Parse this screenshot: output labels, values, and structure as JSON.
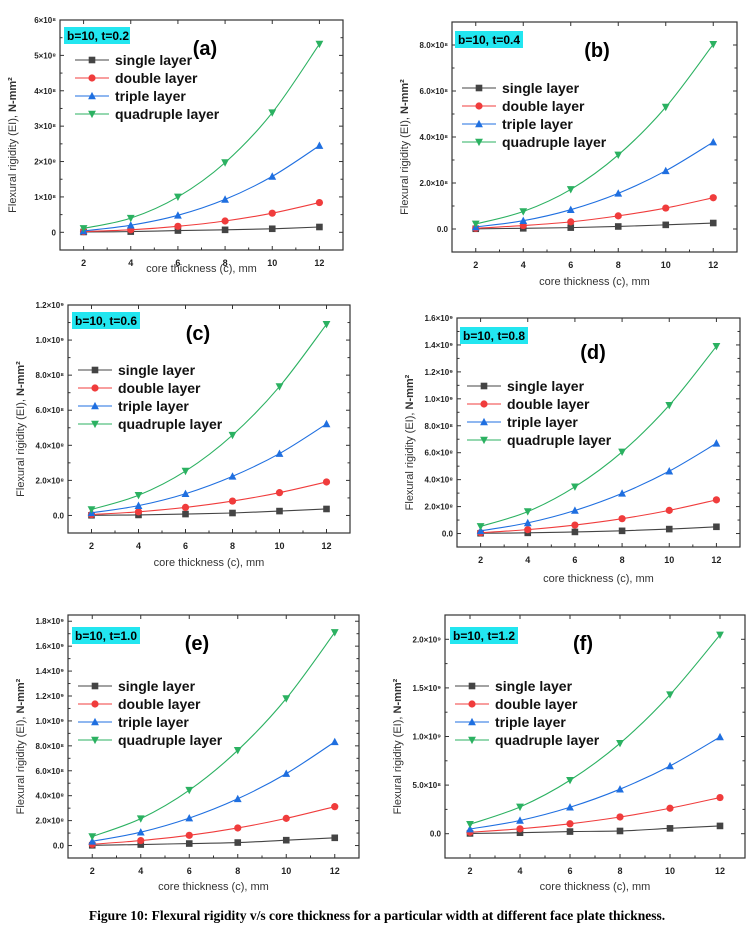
{
  "caption": "Figure 10: Flexural rigidity v/s core thickness for a particular width at different face plate thickness.",
  "series_styles": [
    {
      "name": "single layer",
      "color": "#444444",
      "marker": "square"
    },
    {
      "name": "double layer",
      "color": "#f03c3c",
      "marker": "circle"
    },
    {
      "name": "triple layer",
      "color": "#1f6fe0",
      "marker": "triangle-up"
    },
    {
      "name": "quadruple layer",
      "color": "#2bb161",
      "marker": "triangle-down"
    }
  ],
  "param_box_color": "#22e6f0",
  "chart_data": [
    {
      "type": "line",
      "panel": "(a)",
      "param_label": "b=10, t=0.2",
      "xlabel": "core thickness (c), mm",
      "ylabel": "Flexural rigidity (EI),",
      "ylabel_unit": "N-mm²",
      "x": [
        2,
        4,
        6,
        8,
        10,
        12
      ],
      "xlim": [
        1,
        13
      ],
      "xticks": [
        2,
        4,
        6,
        8,
        10,
        12
      ],
      "ylim": [
        -50000000,
        600000000
      ],
      "yticks": [
        0,
        100000000,
        200000000,
        300000000,
        400000000,
        500000000,
        600000000
      ],
      "ytick_labels": [
        "0",
        "1×10⁸",
        "2×10⁸",
        "3×10⁸",
        "4×10⁸",
        "5×10⁸",
        "6×10⁸"
      ],
      "legend_position": "upper-left",
      "series": [
        {
          "name": "single layer",
          "values": [
            1000000,
            2000000,
            5000000,
            7000000,
            10000000,
            15000000
          ]
        },
        {
          "name": "double layer",
          "values": [
            2000000,
            7000000,
            17000000,
            32000000,
            54000000,
            84000000
          ]
        },
        {
          "name": "triple layer",
          "values": [
            4000000,
            20000000,
            48000000,
            93000000,
            158000000,
            245000000
          ]
        },
        {
          "name": "quadruple layer",
          "values": [
            11000000,
            40000000,
            100000000,
            197000000,
            338000000,
            532000000
          ]
        }
      ]
    },
    {
      "type": "line",
      "panel": "(b)",
      "param_label": "b=10, t=0.4",
      "xlabel": "core thickness (c), mm",
      "ylabel": "Flexural rigidity (EI),",
      "ylabel_unit": "N-mm²",
      "x": [
        2,
        4,
        6,
        8,
        10,
        12
      ],
      "xlim": [
        1,
        13
      ],
      "xticks": [
        2,
        4,
        6,
        8,
        10,
        12
      ],
      "ylim": [
        -100000000,
        900000000
      ],
      "yticks": [
        0,
        200000000,
        400000000,
        600000000,
        800000000
      ],
      "ytick_labels": [
        "0.0",
        "2.0×10⁸",
        "4.0×10⁸",
        "6.0×10⁸",
        "8.0×10⁸"
      ],
      "legend_position": "upper-left",
      "series": [
        {
          "name": "single layer",
          "values": [
            1000000,
            3000000,
            6000000,
            11000000,
            18000000,
            26000000
          ]
        },
        {
          "name": "double layer",
          "values": [
            3000000,
            15000000,
            31000000,
            57000000,
            91000000,
            136000000
          ]
        },
        {
          "name": "triple layer",
          "values": [
            9000000,
            36000000,
            84000000,
            155000000,
            253000000,
            378000000
          ]
        },
        {
          "name": "quadruple layer",
          "values": [
            22000000,
            76000000,
            172000000,
            322000000,
            530000000,
            803000000
          ]
        }
      ]
    },
    {
      "type": "line",
      "panel": "(c)",
      "param_label": "b=10, t=0.6",
      "xlabel": "core thickness (c), mm",
      "ylabel": "Flexural rigidity (EI),",
      "ylabel_unit": "N-mm²",
      "x": [
        2,
        4,
        6,
        8,
        10,
        12
      ],
      "xlim": [
        1,
        13
      ],
      "xticks": [
        2,
        4,
        6,
        8,
        10,
        12
      ],
      "ylim": [
        -100000000,
        1200000000
      ],
      "yticks": [
        0,
        200000000,
        400000000,
        600000000,
        800000000,
        1000000000,
        1200000000
      ],
      "ytick_labels": [
        "0.0",
        "2.0×10⁸",
        "4.0×10⁸",
        "6.0×10⁸",
        "8.0×10⁸",
        "1.0×10⁹",
        "1.2×10⁹"
      ],
      "legend_position": "upper-left",
      "series": [
        {
          "name": "single layer",
          "values": [
            1000000,
            3000000,
            8000000,
            14000000,
            25000000,
            37000000
          ]
        },
        {
          "name": "double layer",
          "values": [
            5000000,
            21000000,
            46000000,
            82000000,
            130000000,
            191000000
          ]
        },
        {
          "name": "triple layer",
          "values": [
            15000000,
            56000000,
            124000000,
            223000000,
            353000000,
            522000000
          ]
        },
        {
          "name": "quadruple layer",
          "values": [
            34000000,
            115000000,
            253000000,
            458000000,
            735000000,
            1090000000
          ]
        }
      ]
    },
    {
      "type": "line",
      "panel": "(d)",
      "param_label": "b=10, t=0.8",
      "xlabel": "core thickness (c), mm",
      "ylabel": "Flexural rigidity (EI),",
      "ylabel_unit": "N-mm²",
      "x": [
        2,
        4,
        6,
        8,
        10,
        12
      ],
      "xlim": [
        1,
        13
      ],
      "xticks": [
        2,
        4,
        6,
        8,
        10,
        12
      ],
      "ylim": [
        -100000000,
        1600000000
      ],
      "yticks": [
        0,
        200000000,
        400000000,
        600000000,
        800000000,
        1000000000,
        1200000000,
        1400000000,
        1600000000
      ],
      "ytick_labels": [
        "0.0",
        "2.0×10⁸",
        "4.0×10⁸",
        "6.0×10⁸",
        "8.0×10⁸",
        "1.0×10⁹",
        "1.2×10⁹",
        "1.4×10⁹",
        "1.6×10⁹"
      ],
      "legend_position": "upper-left",
      "series": [
        {
          "name": "single layer",
          "values": [
            2000000,
            5000000,
            12000000,
            20000000,
            33000000,
            50000000
          ]
        },
        {
          "name": "double layer",
          "values": [
            6000000,
            29000000,
            63000000,
            110000000,
            172000000,
            250000000
          ]
        },
        {
          "name": "triple layer",
          "values": [
            20000000,
            79000000,
            171000000,
            298000000,
            463000000,
            670000000
          ]
        },
        {
          "name": "quadruple layer",
          "values": [
            53000000,
            163000000,
            347000000,
            606000000,
            952000000,
            1390000000
          ]
        }
      ]
    },
    {
      "type": "line",
      "panel": "(e)",
      "param_label": "b=10, t=1.0",
      "xlabel": "core thickness (c), mm",
      "ylabel": "Flexural rigidity (EI),",
      "ylabel_unit": "N-mm²",
      "x": [
        2,
        4,
        6,
        8,
        10,
        12
      ],
      "xlim": [
        1,
        13
      ],
      "xticks": [
        2,
        4,
        6,
        8,
        10,
        12
      ],
      "ylim": [
        -100000000,
        1850000000
      ],
      "yticks": [
        0,
        200000000,
        400000000,
        600000000,
        800000000,
        1000000000,
        1200000000,
        1400000000,
        1600000000,
        1800000000
      ],
      "ytick_labels": [
        "0.0",
        "2.0×10⁸",
        "4.0×10⁸",
        "6.0×10⁸",
        "8.0×10⁸",
        "1.0×10⁹",
        "1.2×10⁹",
        "1.4×10⁹",
        "1.6×10⁹",
        "1.8×10⁹"
      ],
      "legend_position": "upper-left",
      "series": [
        {
          "name": "single layer",
          "values": [
            2000000,
            8000000,
            16000000,
            24000000,
            43000000,
            62000000
          ]
        },
        {
          "name": "double layer",
          "values": [
            10000000,
            40000000,
            82000000,
            141000000,
            218000000,
            312000000
          ]
        },
        {
          "name": "triple layer",
          "values": [
            34000000,
            107000000,
            220000000,
            375000000,
            577000000,
            832000000
          ]
        },
        {
          "name": "quadruple layer",
          "values": [
            72000000,
            216000000,
            444000000,
            764000000,
            1180000000,
            1710000000
          ]
        }
      ]
    },
    {
      "type": "line",
      "panel": "(f)",
      "param_label": "b=10, t=1.2",
      "xlabel": "core thickness (c), mm",
      "ylabel": "Flexural rigidity (EI),",
      "ylabel_unit": "N-mm²",
      "x": [
        2,
        4,
        6,
        8,
        10,
        12
      ],
      "xlim": [
        1,
        13
      ],
      "xticks": [
        2,
        4,
        6,
        8,
        10,
        12
      ],
      "ylim": [
        -250000000,
        2250000000
      ],
      "yticks": [
        0,
        500000000,
        1000000000,
        1500000000,
        2000000000
      ],
      "ytick_labels": [
        "0.0",
        "5.0×10⁸",
        "1.0×10⁹",
        "1.5×10⁹",
        "2.0×10⁹"
      ],
      "legend_position": "upper-left",
      "series": [
        {
          "name": "single layer",
          "values": [
            3000000,
            10000000,
            22000000,
            28000000,
            55000000,
            80000000
          ]
        },
        {
          "name": "double layer",
          "values": [
            15000000,
            50000000,
            102000000,
            172000000,
            262000000,
            372000000
          ]
        },
        {
          "name": "triple layer",
          "values": [
            48000000,
            136000000,
            272000000,
            458000000,
            697000000,
            995000000
          ]
        },
        {
          "name": "quadruple layer",
          "values": [
            97000000,
            275000000,
            550000000,
            930000000,
            1430000000,
            2045000000
          ]
        }
      ]
    }
  ]
}
